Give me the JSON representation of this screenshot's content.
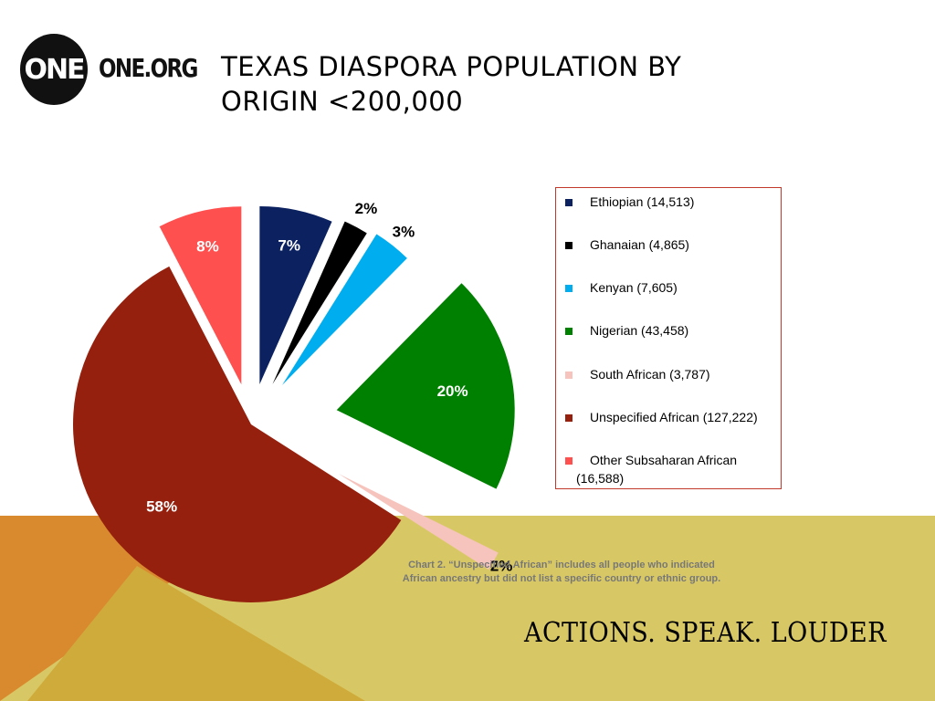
{
  "branding": {
    "logo_mark": "ONE",
    "logo_text": "ONE.ORG"
  },
  "slide": {
    "title_line1": "TEXAS DIASPORA POPULATION BY",
    "title_line2": "ORIGIN <200,000",
    "caption_line1": "Chart 2. “Unspecified African” includes all people who indicated",
    "caption_line2": "African ancestry but did not list a specific country or ethnic group.",
    "slogan": "ACTIONS. SPEAK. LOUDER"
  },
  "colors": {
    "bg_orange": "#d98a2e",
    "bg_gold": "#cfab3b",
    "bg_olive": "#d8c865"
  },
  "chart_data": {
    "type": "pie",
    "title": "TEXAS DIASPORA POPULATION BY ORIGIN <200,000",
    "legend_position": "right",
    "exploded": true,
    "slices": [
      {
        "label": "Ethiopian",
        "value": 14513,
        "percent_label": "7%",
        "color": "#0b2160",
        "legend": "Ethiopian (14,513)"
      },
      {
        "label": "Ghanaian",
        "value": 4865,
        "percent_label": "2%",
        "color": "#000000",
        "legend": "Ghanaian (4,865)"
      },
      {
        "label": "Kenyan",
        "value": 7605,
        "percent_label": "3%",
        "color": "#00aeef",
        "legend": "Kenyan (7,605)"
      },
      {
        "label": "Nigerian",
        "value": 43458,
        "percent_label": "20%",
        "color": "#008000",
        "legend": "Nigerian (43,458)"
      },
      {
        "label": "South African",
        "value": 3787,
        "percent_label": "2%",
        "color": "#f6c4bd",
        "legend": "South African (3,787)"
      },
      {
        "label": "Unspecified African",
        "value": 127222,
        "percent_label": "58%",
        "color": "#96200e",
        "legend": "Unspecified African (127,222)"
      },
      {
        "label": "Other Subsaharan African",
        "value": 16588,
        "percent_label": "8%",
        "color": "#ff5050",
        "legend_line1": "Other Subsaharan African",
        "legend_line2": "(16,588)"
      }
    ]
  }
}
